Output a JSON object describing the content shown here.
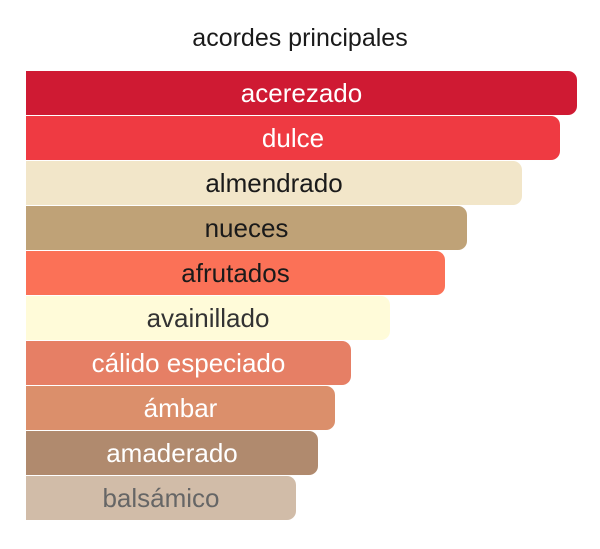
{
  "title": "acordes principales",
  "chart_data": {
    "type": "bar",
    "orientation": "horizontal",
    "title": "acordes principales",
    "xlabel": "",
    "ylabel": "",
    "grid": false,
    "xlim": [
      0,
      100
    ],
    "categories": [
      "acerezado",
      "dulce",
      "almendrado",
      "nueces",
      "afrutados",
      "avainillado",
      "cálido especiado",
      "ámbar",
      "amaderado",
      "balsámico"
    ],
    "values": [
      100,
      97,
      90,
      80,
      76,
      66,
      59,
      56,
      53,
      49
    ],
    "colors": [
      "#cf1a33",
      "#ef3a42",
      "#f2e6c9",
      "#bfa277",
      "#fb7157",
      "#fffbd9",
      "#e67f65",
      "#db8f6b",
      "#b08a6e",
      "#d1bca8"
    ],
    "label_colors": [
      "#ffffff",
      "#ffffff",
      "#1a1a1a",
      "#1a1a1a",
      "#1a1a1a",
      "#333333",
      "#ffffff",
      "#ffffff",
      "#ffffff",
      "#666666"
    ]
  }
}
